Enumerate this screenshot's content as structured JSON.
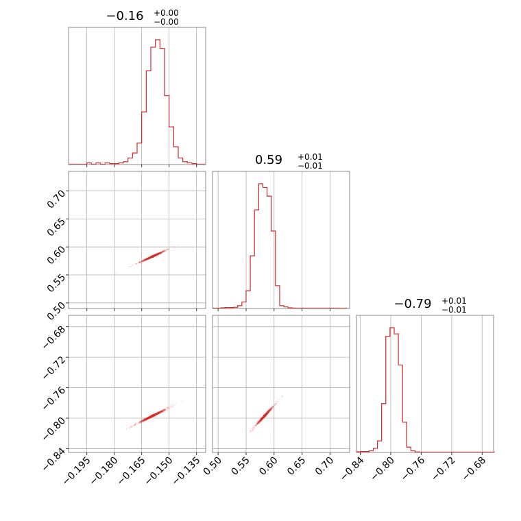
{
  "chart_data": {
    "type": "corner",
    "color": "#d62728",
    "grid": true,
    "parameters": [
      {
        "title": {
          "median": "−0.16",
          "plus": "+0.00",
          "minus": "−0.00"
        },
        "range": [
          -0.205,
          -0.13
        ],
        "ticks": [
          -0.195,
          -0.18,
          -0.165,
          -0.15,
          -0.135
        ],
        "tick_labels": [
          "−0.195",
          "−0.180",
          "−0.165",
          "−0.150",
          "−0.135"
        ],
        "histogram": {
          "bin_start": -0.205,
          "bin_width": 0.0025,
          "counts": [
            0,
            0,
            0,
            0,
            0.01,
            0,
            0.01,
            0,
            0.01,
            0.005,
            0.005,
            0.01,
            0.02,
            0.05,
            0.09,
            0.17,
            0.42,
            0.75,
            0.94,
            1.0,
            0.93,
            0.55,
            0.3,
            0.14,
            0.05,
            0.02,
            0.01,
            0.005,
            0.0,
            0.0
          ]
        }
      },
      {
        "title": {
          "median": "0.59",
          "plus": "+0.01",
          "minus": "−0.01"
        },
        "range": [
          0.49,
          0.735
        ],
        "ticks": [
          0.5,
          0.55,
          0.6,
          0.65,
          0.7
        ],
        "tick_labels": [
          "0.50",
          "0.55",
          "0.60",
          "0.65",
          "0.70"
        ],
        "histogram": {
          "bin_start": 0.49,
          "bin_width": 0.0075,
          "counts": [
            0,
            0,
            0.003,
            0.005,
            0.005,
            0.007,
            0.02,
            0.05,
            0.14,
            0.42,
            0.79,
            1.0,
            0.97,
            0.9,
            0.62,
            0.18,
            0.02,
            0.01,
            0.003,
            0.001,
            0,
            0,
            0,
            0,
            0,
            0,
            0,
            0,
            0,
            0,
            0,
            0
          ]
        }
      },
      {
        "title": {
          "median": "−0.79",
          "plus": "+0.01",
          "minus": "−0.01"
        },
        "range": [
          -0.845,
          -0.665
        ],
        "ticks": [
          -0.84,
          -0.8,
          -0.76,
          -0.72,
          -0.68
        ],
        "tick_labels": [
          "−0.84",
          "−0.80",
          "−0.76",
          "−0.72",
          "−0.68"
        ],
        "histogram": {
          "bin_start": -0.845,
          "bin_width": 0.0055,
          "counts": [
            0.003,
            0.005,
            0.005,
            0.01,
            0.03,
            0.09,
            0.39,
            0.93,
            1.0,
            0.95,
            0.7,
            0.24,
            0.04,
            0.01,
            0.002,
            0,
            0,
            0,
            0,
            0,
            0,
            0,
            0,
            0,
            0,
            0,
            0,
            0,
            0,
            0,
            0,
            0,
            0
          ]
        }
      }
    ],
    "pairs": [
      {
        "x": 0,
        "y": 1,
        "center": [
          -0.159,
          0.583
        ],
        "slope": 1.5,
        "sigma_major": 0.0055,
        "aspect": 0.07
      },
      {
        "x": 0,
        "y": 2,
        "center": [
          -0.159,
          -0.797
        ],
        "slope": 1.2,
        "sigma_major": 0.0055,
        "aspect": 0.07
      },
      {
        "x": 1,
        "y": 2,
        "center": [
          0.583,
          -0.797
        ],
        "slope": 0.8,
        "sigma_major": 0.0085,
        "aspect": 0.07
      }
    ]
  }
}
